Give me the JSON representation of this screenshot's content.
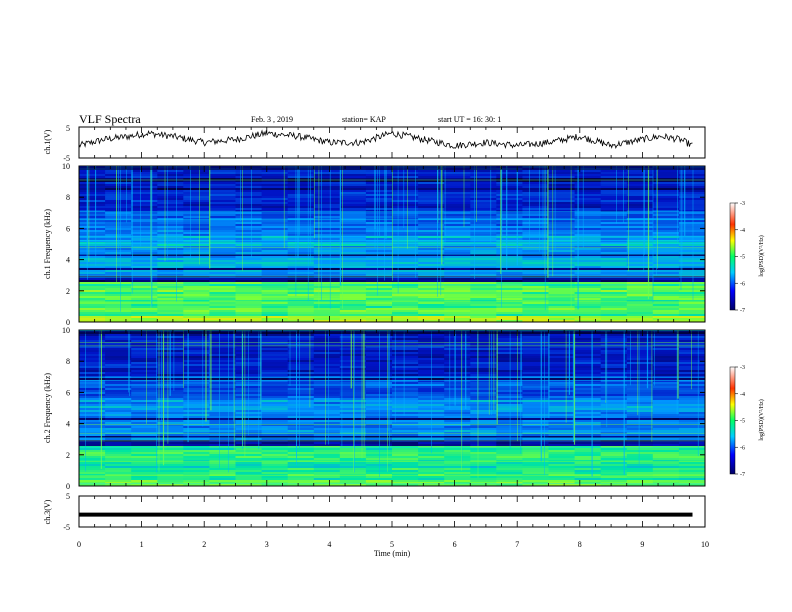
{
  "header": {
    "title": "VLF Spectra",
    "date": "Feb. 3 , 2019",
    "station": "station= KAP",
    "start": "start  UT =   16: 30: 1"
  },
  "chart_data": [
    {
      "type": "line",
      "name": "waveform-ch1",
      "ylabel": "ch.1(V)",
      "xlim": [
        0,
        10
      ],
      "ylim": [
        -5,
        5
      ],
      "yticks": [
        -5,
        5
      ],
      "x": [
        0,
        0.4,
        0.8,
        1.1,
        1.5,
        2.0,
        2.5,
        3.0,
        3.5,
        4.0,
        4.5,
        5.0,
        5.5,
        6.0,
        6.5,
        7.0,
        7.5,
        8.0,
        8.5,
        9.0,
        9.3,
        9.6,
        9.8
      ],
      "y": [
        -1,
        1,
        2,
        3,
        2,
        0,
        1,
        3,
        2,
        0,
        0,
        3,
        1,
        -1,
        0,
        -1,
        0,
        2,
        -1,
        1,
        2,
        1,
        -1
      ]
    },
    {
      "type": "heatmap",
      "name": "spectrogram-ch1",
      "ylabel": "ch.1  Frequency (kHz)",
      "xlim": [
        0,
        10
      ],
      "ylim": [
        0,
        10
      ],
      "yticks": [
        0,
        2,
        4,
        6,
        8,
        10
      ],
      "colorbar": {
        "label": "log(PSD)(V²/Hz)",
        "range": [
          -7,
          -3
        ],
        "ticks": [
          -3,
          -4,
          -5,
          -6,
          -7
        ]
      }
    },
    {
      "type": "heatmap",
      "name": "spectrogram-ch2",
      "ylabel": "ch.2  Frequency (kHz)",
      "xlim": [
        0,
        10
      ],
      "ylim": [
        0,
        10
      ],
      "yticks": [
        0,
        2,
        4,
        6,
        8,
        10
      ],
      "colorbar": {
        "label": "log(PSD)(V²/Hz)",
        "range": [
          -7,
          -3
        ],
        "ticks": [
          -3,
          -4,
          -5,
          -6,
          -7
        ]
      }
    },
    {
      "type": "line",
      "name": "waveform-ch3",
      "ylabel": "ch.3(V)",
      "xlabel": "Time  (min)",
      "xlim": [
        0,
        10
      ],
      "ylim": [
        -5,
        5
      ],
      "yticks": [
        -5,
        5
      ],
      "x": [
        0,
        9.8
      ],
      "y": [
        -1,
        -1
      ],
      "xticks": [
        0,
        1,
        2,
        3,
        4,
        5,
        6,
        7,
        8,
        9,
        10
      ]
    }
  ]
}
